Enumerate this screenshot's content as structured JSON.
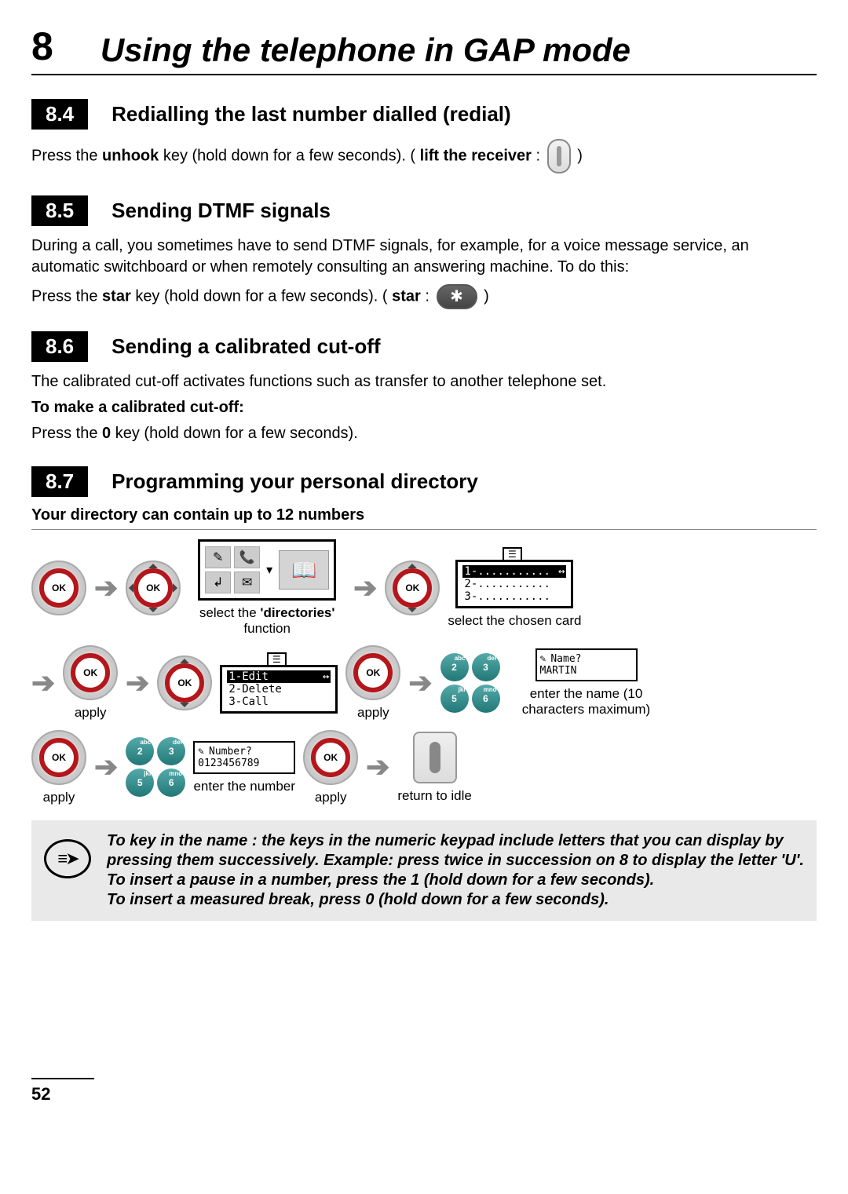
{
  "chapter": {
    "number": "8",
    "title": "Using the telephone in GAP mode"
  },
  "sections": {
    "s84": {
      "num": "8.4",
      "title": "Redialling the last number dialled (redial)",
      "text_a": "Press the ",
      "key1": "unhook",
      "text_b": " key (hold down for a few seconds). (",
      "key2": "lift the receiver",
      "text_c": " : ",
      "text_d": " )"
    },
    "s85": {
      "num": "8.5",
      "title": "Sending DTMF signals",
      "para": "During a call, you sometimes have to send DTMF signals, for example, for a voice message service, an automatic switchboard or when remotely consulting an answering machine. To do this:",
      "text_a": "Press the ",
      "key1": "star",
      "text_b": " key (hold down for a few seconds). ( ",
      "key2": "star",
      "text_c": " : ",
      "text_d": " )"
    },
    "s86": {
      "num": "8.6",
      "title": "Sending a calibrated cut-off",
      "para": "The calibrated cut-off activates functions such as transfer to another telephone set.",
      "sub": "To make a calibrated cut-off:",
      "text": "Press the ",
      "key": "0",
      "text2": " key (hold down for a few seconds)."
    },
    "s87": {
      "num": "8.7",
      "title": "Programming your personal directory",
      "sub": "Your directory can contain up to 12 numbers"
    }
  },
  "ok_label": "OK",
  "flow": {
    "step1_caption": "select the 'directories' function",
    "dir_word": "'directories'",
    "step2_caption": "select the chosen card",
    "apply": "apply",
    "name_caption": "enter the name (10 characters maximum)",
    "num_caption": "enter the number",
    "idle_caption": "return to idle",
    "screen_list": {
      "l1": "1-...........",
      "l2": "2-...........",
      "l3": "3-..........."
    },
    "screen_menu": {
      "l1": "1-Edit",
      "l2": "2-Delete",
      "l3": "3-Call"
    },
    "screen_name": {
      "prompt": "Name?",
      "value": "MARTIN"
    },
    "screen_num": {
      "prompt": "Number?",
      "value": "0123456789"
    },
    "keypad": {
      "k2": "2",
      "k2s": "abc",
      "k3": "3",
      "k3s": "def",
      "k5": "5",
      "k5s": "jkl",
      "k6": "6",
      "k6s": "mno"
    }
  },
  "note": {
    "l1": "To key in the name : the keys in the numeric keypad include letters that you can display by pressing them successively. Example: press twice in succession on 8 to display the letter 'U'.",
    "l2": "To insert a pause in a number, press the 1 (hold down for a few seconds).",
    "l3": "To insert a measured break, press 0 (hold down for a few seconds)."
  },
  "page_number": "52",
  "colors": {
    "accent": "#b5161b",
    "note_bg": "#e9e9e9"
  }
}
